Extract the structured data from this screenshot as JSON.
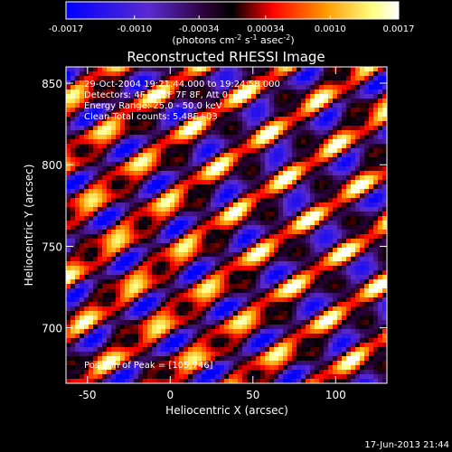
{
  "chart_data": {
    "type": "heatmap",
    "title": "Reconstructed RHESSI Image",
    "xlabel": "Heliocentric X (arcsec)",
    "ylabel": "Heliocentric Y (arcsec)",
    "xlim": [
      -63,
      131
    ],
    "ylim": [
      666,
      860
    ],
    "x_ticks": [
      -50,
      0,
      50,
      100
    ],
    "y_ticks": [
      700,
      750,
      800,
      850
    ],
    "colorbar": {
      "range": [
        -0.0017,
        0.0017
      ],
      "ticks": [
        "-0.0017",
        "-0.0010",
        "-0.00034",
        "0.00034",
        "0.0010",
        "0.0017"
      ],
      "unit_label": "(photons cm",
      "unit_sup1": "-2",
      "unit_mid": " s",
      "unit_sup2": "-1",
      "unit_mid2": " asec",
      "unit_sup3": "-2",
      "unit_end": ")",
      "colormap": [
        "#0000ff",
        "#6020c0",
        "#2a0035",
        "#000000",
        "#ff0000",
        "#ff9900",
        "#ffff80",
        "#ffffff"
      ]
    },
    "annotations": {
      "line1": "29-Oct-2004 19:21:44.000 to 19:24:58.000",
      "line2": "Detectors: 4F 5F 6F 7F 8F, Att 0",
      "line3": "Energy Range: 25.0 - 50.0 keV",
      "line4": "Clean    Total counts: 5.48E+03",
      "peak": "Position of Peak = [105,746]"
    },
    "peak": {
      "x": 105,
      "y": 746
    },
    "pattern_orientation_deg": 35,
    "timestamp": "17-Jun-2013 21:44"
  }
}
